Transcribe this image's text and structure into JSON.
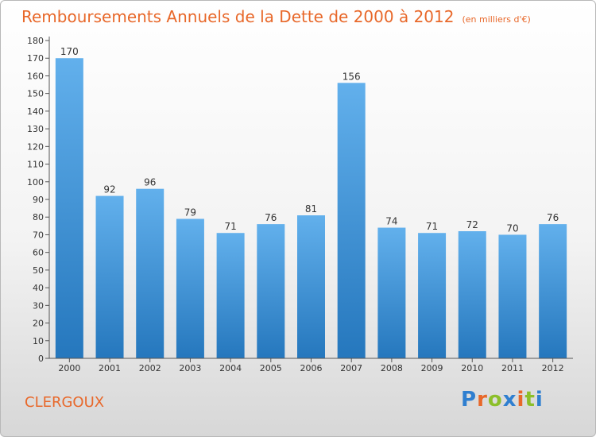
{
  "title": "Remboursements Annuels de la Dette de 2000 à 2012",
  "subtitle": "(en milliers d'€)",
  "place_name": "CLERGOUX",
  "logo": {
    "text": "Proxiti",
    "letters": [
      {
        "char": "P",
        "color": "#2f7fd0"
      },
      {
        "char": "r",
        "color": "#e8682a"
      },
      {
        "char": "o",
        "color": "#8cbf2a"
      },
      {
        "char": "x",
        "color": "#2f7fd0"
      },
      {
        "char": "i",
        "color": "#e8682a"
      },
      {
        "char": "t",
        "color": "#8cbf2a"
      },
      {
        "char": "i",
        "color": "#2f7fd0"
      }
    ]
  },
  "colors": {
    "title": "#e8682a",
    "bar_top": "#62b0ec",
    "bar_bottom": "#2577bd"
  },
  "chart_data": {
    "type": "bar",
    "categories": [
      "2000",
      "2001",
      "2002",
      "2003",
      "2004",
      "2005",
      "2006",
      "2007",
      "2008",
      "2009",
      "2010",
      "2011",
      "2012"
    ],
    "values": [
      170,
      92,
      96,
      79,
      71,
      76,
      81,
      156,
      74,
      71,
      72,
      70,
      76
    ],
    "ylim": [
      0,
      180
    ],
    "yticks": [
      0,
      10,
      20,
      30,
      40,
      50,
      60,
      70,
      80,
      90,
      100,
      110,
      120,
      130,
      140,
      150,
      160,
      170,
      180
    ],
    "grid": false,
    "legend": "none"
  }
}
